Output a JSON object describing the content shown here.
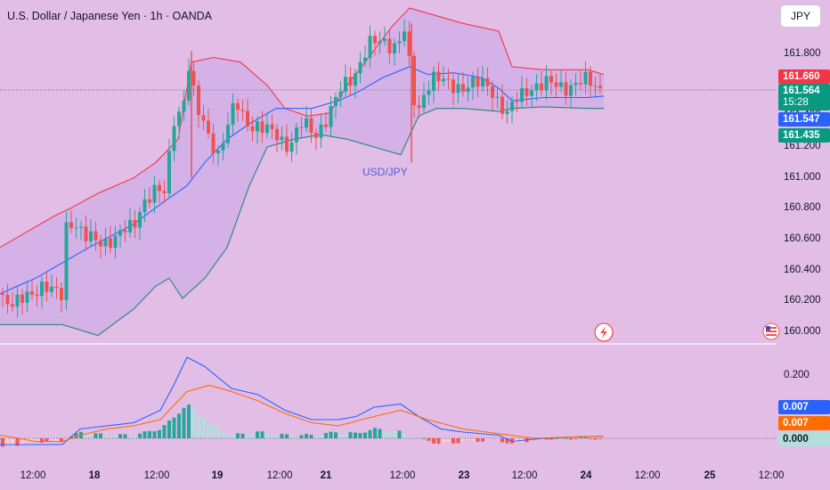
{
  "header": {
    "title": "U.S. Dollar / Japanese Yen · 1h · OANDA",
    "currency_button": "JPY"
  },
  "annotation": "USD/JPY",
  "colors": {
    "up": "#26a69a",
    "down": "#ef5350",
    "upper_band": "#f23645",
    "lower_band": "#22867a",
    "basis": "#2962ff",
    "macd": "#2962ff",
    "signal": "#ff6d00",
    "hist_up_strong": "#26a69a",
    "hist_up_weak": "#b2dfdb",
    "hist_down_strong": "#ff5252",
    "hist_down_weak": "#ffcdd2"
  },
  "price_labels": [
    {
      "value": "161.660",
      "color": "#f23645"
    },
    {
      "value": "161.564",
      "color": "#089981",
      "sub": "15:28"
    },
    {
      "value": "161.547",
      "color": "#2962ff"
    },
    {
      "value": "161.435",
      "color": "#089981"
    }
  ],
  "macd_labels": [
    {
      "value": "0.007",
      "color": "#2962ff"
    },
    {
      "value": "0.007",
      "color": "#ff6d00"
    },
    {
      "value": "0.000",
      "color": "#b2dfdb",
      "text_color": "#131722"
    }
  ],
  "chart_data": {
    "type": "candlestick",
    "price_axis": {
      "ticks": [
        "161.800",
        "161.600",
        "161.400",
        "161.200",
        "161.000",
        "160.800",
        "160.600",
        "160.400",
        "160.200",
        "160.000"
      ],
      "range": [
        159.95,
        162.2
      ]
    },
    "macd_axis": {
      "ticks": [
        "0.200"
      ],
      "range": [
        -0.06,
        0.27
      ]
    },
    "x_ticks": [
      "12:00",
      "18",
      "12:00",
      "19",
      "12:00",
      "21",
      "12:00",
      "23",
      "12:00",
      "24",
      "12:00",
      "25",
      "12:00"
    ],
    "bollinger": {
      "upper": [
        [
          0,
          160.55
        ],
        [
          30,
          160.65
        ],
        [
          60,
          160.75
        ],
        [
          78,
          160.8
        ],
        [
          110,
          160.9
        ],
        [
          150,
          161.0
        ],
        [
          175,
          161.1
        ],
        [
          200,
          161.25
        ],
        [
          215,
          161.75
        ],
        [
          240,
          161.78
        ],
        [
          270,
          161.75
        ],
        [
          300,
          161.6
        ],
        [
          320,
          161.45
        ],
        [
          345,
          161.4
        ],
        [
          370,
          161.42
        ],
        [
          390,
          161.6
        ],
        [
          410,
          161.75
        ],
        [
          440,
          161.98
        ],
        [
          460,
          162.1
        ],
        [
          490,
          162.05
        ],
        [
          520,
          162.0
        ],
        [
          560,
          161.95
        ],
        [
          575,
          161.72
        ],
        [
          610,
          161.7
        ],
        [
          660,
          161.7
        ],
        [
          678,
          161.67
        ]
      ],
      "basis": [
        [
          0,
          160.25
        ],
        [
          40,
          160.35
        ],
        [
          70,
          160.45
        ],
        [
          100,
          160.55
        ],
        [
          150,
          160.7
        ],
        [
          185,
          160.85
        ],
        [
          210,
          160.95
        ],
        [
          230,
          161.1
        ],
        [
          255,
          161.25
        ],
        [
          280,
          161.35
        ],
        [
          310,
          161.45
        ],
        [
          350,
          161.45
        ],
        [
          380,
          161.5
        ],
        [
          400,
          161.55
        ],
        [
          430,
          161.65
        ],
        [
          460,
          161.72
        ],
        [
          480,
          161.67
        ],
        [
          510,
          161.68
        ],
        [
          540,
          161.65
        ],
        [
          560,
          161.58
        ],
        [
          575,
          161.5
        ],
        [
          610,
          161.52
        ],
        [
          660,
          161.52
        ],
        [
          678,
          161.53
        ]
      ],
      "lower": [
        [
          0,
          160.05
        ],
        [
          40,
          160.05
        ],
        [
          70,
          160.05
        ],
        [
          110,
          159.98
        ],
        [
          150,
          160.15
        ],
        [
          175,
          160.3
        ],
        [
          190,
          160.35
        ],
        [
          205,
          160.22
        ],
        [
          230,
          160.35
        ],
        [
          255,
          160.55
        ],
        [
          280,
          160.95
        ],
        [
          300,
          161.2
        ],
        [
          330,
          161.25
        ],
        [
          360,
          161.28
        ],
        [
          390,
          161.25
        ],
        [
          420,
          161.2
        ],
        [
          450,
          161.15
        ],
        [
          470,
          161.4
        ],
        [
          490,
          161.45
        ],
        [
          520,
          161.45
        ],
        [
          560,
          161.43
        ],
        [
          575,
          161.45
        ],
        [
          610,
          161.46
        ],
        [
          660,
          161.45
        ],
        [
          678,
          161.45
        ]
      ]
    },
    "macd": {
      "macd": [
        [
          0,
          -0.02
        ],
        [
          40,
          -0.02
        ],
        [
          70,
          -0.02
        ],
        [
          90,
          0.03
        ],
        [
          120,
          0.04
        ],
        [
          150,
          0.05
        ],
        [
          180,
          0.09
        ],
        [
          195,
          0.17
        ],
        [
          210,
          0.26
        ],
        [
          230,
          0.23
        ],
        [
          260,
          0.16
        ],
        [
          290,
          0.14
        ],
        [
          320,
          0.09
        ],
        [
          350,
          0.06
        ],
        [
          380,
          0.06
        ],
        [
          400,
          0.07
        ],
        [
          420,
          0.1
        ],
        [
          450,
          0.11
        ],
        [
          470,
          0.07
        ],
        [
          495,
          0.03
        ],
        [
          520,
          0.02
        ],
        [
          560,
          0.01
        ],
        [
          575,
          -0.01
        ],
        [
          610,
          0.0
        ],
        [
          650,
          0.005
        ],
        [
          678,
          0.007
        ]
      ],
      "signal": [
        [
          0,
          0.01
        ],
        [
          40,
          -0.01
        ],
        [
          70,
          -0.01
        ],
        [
          90,
          0.01
        ],
        [
          120,
          0.03
        ],
        [
          150,
          0.04
        ],
        [
          180,
          0.06
        ],
        [
          210,
          0.15
        ],
        [
          235,
          0.17
        ],
        [
          260,
          0.15
        ],
        [
          290,
          0.12
        ],
        [
          320,
          0.08
        ],
        [
          350,
          0.05
        ],
        [
          380,
          0.04
        ],
        [
          420,
          0.07
        ],
        [
          450,
          0.09
        ],
        [
          480,
          0.06
        ],
        [
          520,
          0.03
        ],
        [
          560,
          0.015
        ],
        [
          600,
          0.0
        ],
        [
          650,
          0.005
        ],
        [
          678,
          0.007
        ]
      ]
    }
  }
}
